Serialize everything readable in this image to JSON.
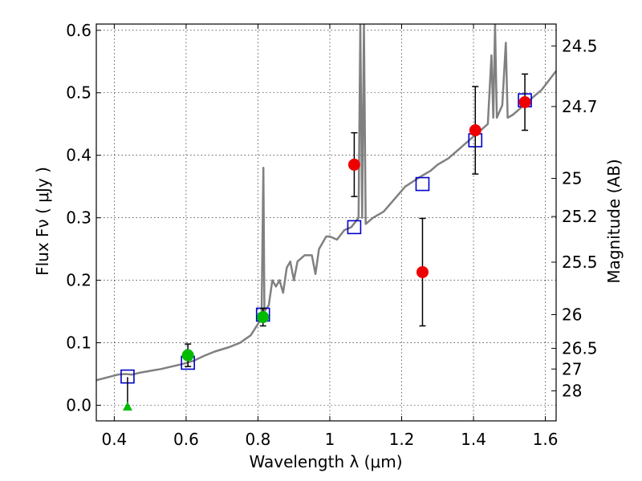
{
  "chart_data": {
    "type": "scatter",
    "title": "",
    "xlabel": "Wavelength  λ (μm)",
    "ylabel": "Flux  Fν  ( μJy )",
    "y2label": "Magnitude (AB)",
    "xlim": [
      0.35,
      1.63
    ],
    "ylim": [
      -0.025,
      0.61
    ],
    "grid": true,
    "x_ticks": [
      0.4,
      0.6,
      0.8,
      1.0,
      1.2,
      1.4,
      1.6
    ],
    "x_tick_labels": [
      "0.4",
      "0.6",
      "0.8",
      "1",
      "1.2",
      "1.4",
      "1.6"
    ],
    "y_ticks": [
      0.0,
      0.1,
      0.2,
      0.3,
      0.4,
      0.5,
      0.6
    ],
    "y_tick_labels": [
      "0.0",
      "0.1",
      "0.2",
      "0.3",
      "0.4",
      "0.5",
      "0.6"
    ],
    "y2_ticks": [
      {
        "label": "24.5",
        "flux": 0.575
      },
      {
        "label": "24.7",
        "flux": 0.478
      },
      {
        "label": "25",
        "flux": 0.363
      },
      {
        "label": "25.2",
        "flux": 0.302
      },
      {
        "label": "25.5",
        "flux": 0.229
      },
      {
        "label": "26",
        "flux": 0.145
      },
      {
        "label": "26.5",
        "flux": 0.091
      },
      {
        "label": "27",
        "flux": 0.058
      },
      {
        "label": "28",
        "flux": 0.023
      }
    ],
    "series": [
      {
        "marker": "line",
        "color": "#808080",
        "points": [
          [
            0.35,
            0.04
          ],
          [
            0.37,
            0.043
          ],
          [
            0.39,
            0.046
          ],
          [
            0.41,
            0.049
          ],
          [
            0.43,
            0.05
          ],
          [
            0.45,
            0.049
          ],
          [
            0.47,
            0.052
          ],
          [
            0.5,
            0.055
          ],
          [
            0.53,
            0.058
          ],
          [
            0.56,
            0.062
          ],
          [
            0.59,
            0.066
          ],
          [
            0.62,
            0.071
          ],
          [
            0.65,
            0.079
          ],
          [
            0.68,
            0.086
          ],
          [
            0.72,
            0.093
          ],
          [
            0.75,
            0.1
          ],
          [
            0.78,
            0.112
          ],
          [
            0.8,
            0.13
          ],
          [
            0.81,
            0.14
          ],
          [
            0.815,
            0.38
          ],
          [
            0.818,
            0.15
          ],
          [
            0.83,
            0.16
          ],
          [
            0.84,
            0.2
          ],
          [
            0.85,
            0.19
          ],
          [
            0.86,
            0.2
          ],
          [
            0.87,
            0.18
          ],
          [
            0.88,
            0.22
          ],
          [
            0.89,
            0.23
          ],
          [
            0.9,
            0.2
          ],
          [
            0.91,
            0.23
          ],
          [
            0.93,
            0.24
          ],
          [
            0.95,
            0.24
          ],
          [
            0.96,
            0.21
          ],
          [
            0.97,
            0.25
          ],
          [
            0.99,
            0.27
          ],
          [
            1.0,
            0.27
          ],
          [
            1.02,
            0.265
          ],
          [
            1.04,
            0.28
          ],
          [
            1.06,
            0.285
          ],
          [
            1.08,
            0.3
          ],
          [
            1.085,
            0.61
          ],
          [
            1.09,
            0.3
          ],
          [
            1.095,
            0.61
          ],
          [
            1.1,
            0.29
          ],
          [
            1.12,
            0.3
          ],
          [
            1.15,
            0.31
          ],
          [
            1.18,
            0.33
          ],
          [
            1.21,
            0.35
          ],
          [
            1.25,
            0.365
          ],
          [
            1.28,
            0.375
          ],
          [
            1.3,
            0.385
          ],
          [
            1.33,
            0.395
          ],
          [
            1.36,
            0.41
          ],
          [
            1.38,
            0.42
          ],
          [
            1.4,
            0.43
          ],
          [
            1.42,
            0.44
          ],
          [
            1.44,
            0.45
          ],
          [
            1.45,
            0.56
          ],
          [
            1.455,
            0.46
          ],
          [
            1.46,
            0.61
          ],
          [
            1.465,
            0.46
          ],
          [
            1.48,
            0.48
          ],
          [
            1.49,
            0.58
          ],
          [
            1.495,
            0.46
          ],
          [
            1.51,
            0.465
          ],
          [
            1.53,
            0.475
          ],
          [
            1.55,
            0.485
          ],
          [
            1.57,
            0.495
          ],
          [
            1.59,
            0.505
          ],
          [
            1.61,
            0.52
          ],
          [
            1.63,
            0.535
          ]
        ]
      },
      {
        "marker": "square",
        "color": "#0000cc",
        "points": [
          [
            0.437,
            0.046
          ],
          [
            0.605,
            0.068
          ],
          [
            0.814,
            0.145
          ],
          [
            1.068,
            0.285
          ],
          [
            1.258,
            0.354
          ],
          [
            1.405,
            0.424
          ],
          [
            1.543,
            0.488
          ]
        ]
      },
      {
        "marker": "circle",
        "color": "#00bb00",
        "points": [
          [
            0.605,
            0.08,
            0.018
          ],
          [
            0.814,
            0.141,
            0.014
          ]
        ]
      },
      {
        "marker": "triangle",
        "color": "#00bb00",
        "points": [
          [
            0.437,
            -0.002
          ]
        ]
      },
      {
        "marker": "circle",
        "color": "#ee0000",
        "points": [
          [
            1.068,
            0.385,
            0.051
          ],
          [
            1.258,
            0.213,
            0.086
          ],
          [
            1.405,
            0.44,
            0.07
          ],
          [
            1.543,
            0.485,
            0.045
          ]
        ]
      }
    ]
  }
}
